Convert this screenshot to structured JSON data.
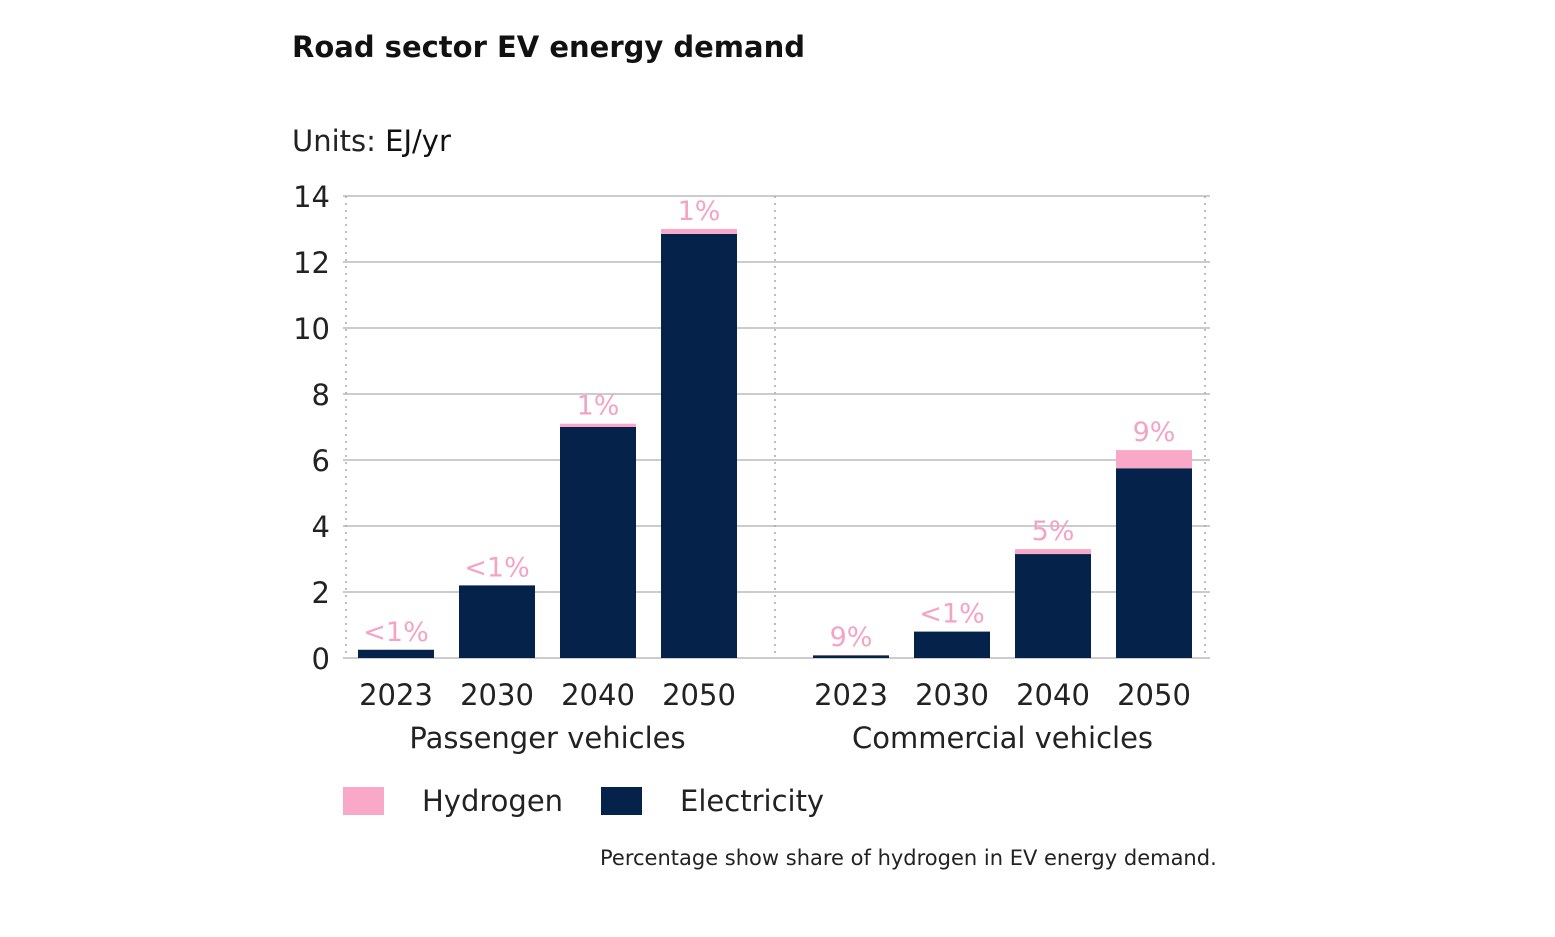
{
  "title": "Road sector EV energy demand",
  "units_label": "Units:",
  "units_value": "EJ/yr",
  "footnote": "Percentage show share of hydrogen in EV energy demand.",
  "colors": {
    "hydrogen": "#f9a8c8",
    "electricity": "#04224a",
    "grid": "#9a9a9a",
    "pct_label": "#f5a3c5"
  },
  "legend": [
    {
      "name": "Hydrogen",
      "color": "#f9a8c8"
    },
    {
      "name": "Electricity",
      "color": "#04224a"
    }
  ],
  "chart_data": {
    "type": "bar",
    "stacked": true,
    "ylim": [
      0,
      14
    ],
    "yticks": [
      "0",
      "2",
      "4",
      "6",
      "8",
      "10",
      "12",
      "14"
    ],
    "groups": [
      {
        "name": "Passenger vehicles",
        "categories": [
          "2023",
          "2030",
          "2040",
          "2050"
        ],
        "electricity": [
          0.25,
          2.2,
          7.0,
          12.85
        ],
        "hydrogen": [
          0.0,
          0.0,
          0.1,
          0.15
        ],
        "labels": [
          "<1%",
          "<1%",
          "1%",
          "1%"
        ]
      },
      {
        "name": "Commercial vehicles",
        "categories": [
          "2023",
          "2030",
          "2040",
          "2050"
        ],
        "electricity": [
          0.08,
          0.8,
          3.15,
          5.75
        ],
        "hydrogen": [
          0.01,
          0.0,
          0.15,
          0.55
        ],
        "labels": [
          "9%",
          "<1%",
          "5%",
          "9%"
        ]
      }
    ],
    "series": [
      {
        "name": "Electricity"
      },
      {
        "name": "Hydrogen"
      }
    ]
  }
}
